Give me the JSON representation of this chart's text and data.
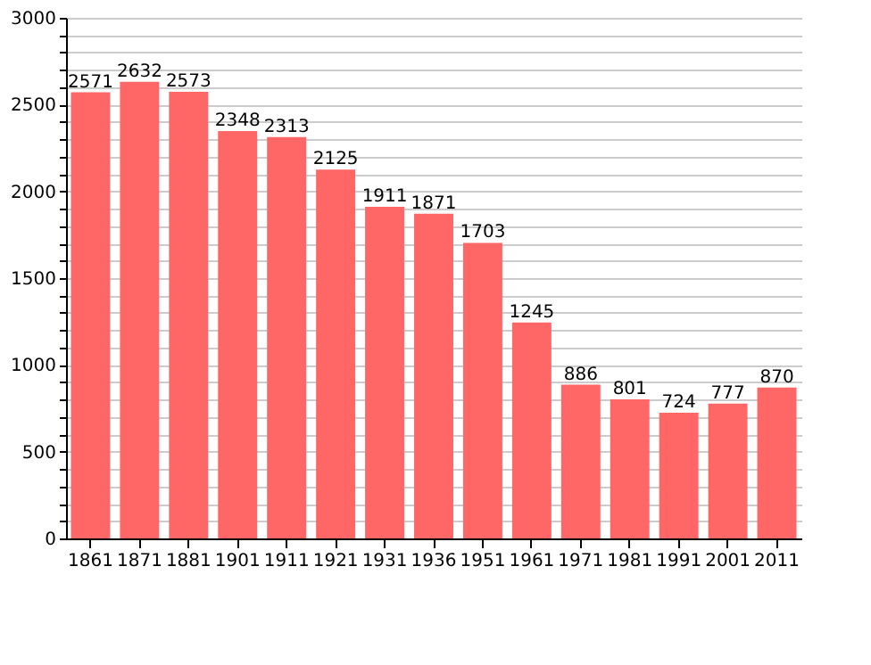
{
  "chart_data": {
    "type": "bar",
    "categories": [
      "1861",
      "1871",
      "1881",
      "1901",
      "1911",
      "1921",
      "1931",
      "1936",
      "1951",
      "1961",
      "1971",
      "1981",
      "1991",
      "2001",
      "2011"
    ],
    "values": [
      2571,
      2632,
      2573,
      2348,
      2313,
      2125,
      1911,
      1871,
      1703,
      1245,
      886,
      801,
      724,
      777,
      870
    ],
    "color": "#ff6666",
    "data_labels": true,
    "grid": "y",
    "ylim": [
      0,
      3000
    ],
    "yticks": [
      0,
      {
        "value": 100,
        "label": null
      },
      {
        "value": 200,
        "label": null
      },
      {
        "value": 300,
        "label": null
      },
      {
        "value": 400,
        "label": null
      },
      500,
      {
        "value": 600,
        "label": null
      },
      {
        "value": 700,
        "label": null
      },
      {
        "value": 800,
        "label": null
      },
      {
        "value": 900,
        "label": null
      },
      1000,
      {
        "value": 1100,
        "label": null
      },
      {
        "value": 1200,
        "label": null
      },
      {
        "value": 1300,
        "label": null
      },
      {
        "value": 1400,
        "label": null
      },
      1500,
      {
        "value": 1600,
        "label": null
      },
      {
        "value": 1700,
        "label": null
      },
      {
        "value": 1800,
        "label": null
      },
      {
        "value": 1900,
        "label": null
      },
      2000,
      {
        "value": 2100,
        "label": null
      },
      {
        "value": 2200,
        "label": null
      },
      {
        "value": 2300,
        "label": null
      },
      {
        "value": 2400,
        "label": null
      },
      2500,
      {
        "value": 2600,
        "label": null
      },
      {
        "value": 2700,
        "label": null
      },
      {
        "value": 2800,
        "label": null
      },
      {
        "value": 2900,
        "label": null
      },
      3000
    ]
  }
}
